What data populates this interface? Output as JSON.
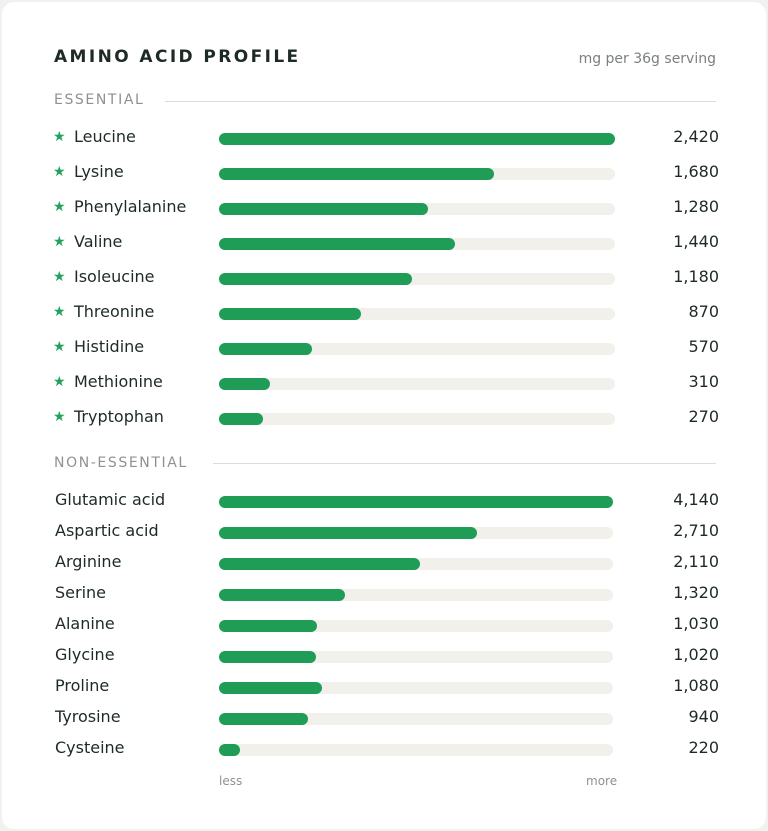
{
  "header": {
    "title": "AMINO ACID PROFILE",
    "unit": "mg per 36g serving"
  },
  "scale": {
    "min_label": "less",
    "max_label": "more"
  },
  "colors": {
    "bar": "#1f9d57",
    "track": "#f1f0eb",
    "star": "#20a35a"
  },
  "chart_data": {
    "type": "bar",
    "orientation": "horizontal",
    "title": "AMINO ACID PROFILE",
    "unit": "mg per 36g serving",
    "groups": [
      {
        "name": "ESSENTIAL",
        "marker": "★",
        "items": [
          {
            "label": "Leucine",
            "value": 2420,
            "display": "2,420"
          },
          {
            "label": "Lysine",
            "value": 1680,
            "display": "1,680"
          },
          {
            "label": "Phenylalanine",
            "value": 1280,
            "display": "1,280"
          },
          {
            "label": "Valine",
            "value": 1440,
            "display": "1,440"
          },
          {
            "label": "Isoleucine",
            "value": 1180,
            "display": "1,180"
          },
          {
            "label": "Threonine",
            "value": 870,
            "display": "870"
          },
          {
            "label": "Histidine",
            "value": 570,
            "display": "570"
          },
          {
            "label": "Methionine",
            "value": 310,
            "display": "310"
          },
          {
            "label": "Tryptophan",
            "value": 270,
            "display": "270"
          }
        ]
      },
      {
        "name": "NON-ESSENTIAL",
        "marker": "",
        "items": [
          {
            "label": "Glutamic acid",
            "value": 4140,
            "display": "4,140"
          },
          {
            "label": "Aspartic acid",
            "value": 2710,
            "display": "2,710"
          },
          {
            "label": "Arginine",
            "value": 2110,
            "display": "2,110"
          },
          {
            "label": "Serine",
            "value": 1320,
            "display": "1,320"
          },
          {
            "label": "Alanine",
            "value": 1030,
            "display": "1,030"
          },
          {
            "label": "Glycine",
            "value": 1020,
            "display": "1,020"
          },
          {
            "label": "Proline",
            "value": 1080,
            "display": "1,080"
          },
          {
            "label": "Tyrosine",
            "value": 940,
            "display": "940"
          },
          {
            "label": "Cysteine",
            "value": 220,
            "display": "220"
          }
        ]
      }
    ]
  }
}
